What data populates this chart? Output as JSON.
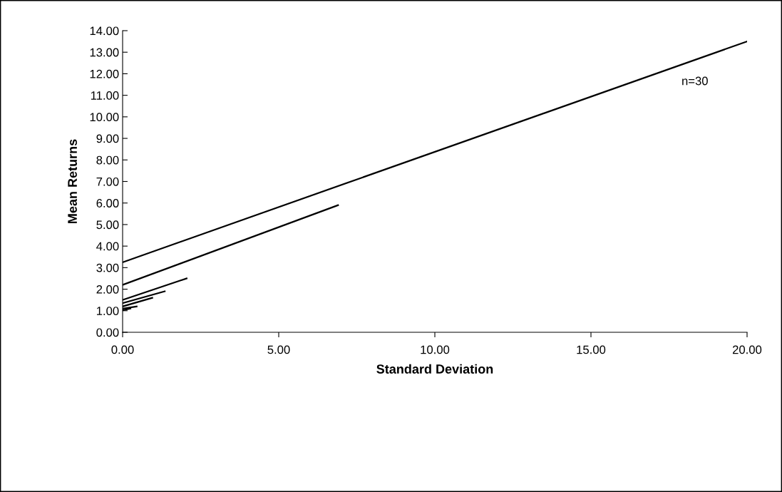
{
  "chart_data": {
    "type": "line",
    "xlabel": "Standard Deviation",
    "ylabel": "Mean Returns",
    "annotations": [
      "n=30"
    ],
    "series": [
      {
        "color": "#000000",
        "x": [
          0,
          20
        ],
        "values": [
          3.25,
          13.5
        ]
      },
      {
        "color": "#000000",
        "x": [
          0,
          6.9
        ],
        "values": [
          2.2,
          5.9
        ]
      },
      {
        "color": "#000000",
        "x": [
          0,
          2.05
        ],
        "values": [
          1.5,
          2.5
        ]
      },
      {
        "color": "#000000",
        "x": [
          0,
          1.35
        ],
        "values": [
          1.35,
          1.9
        ]
      },
      {
        "color": "#000000",
        "x": [
          0,
          0.95
        ],
        "values": [
          1.2,
          1.6
        ]
      },
      {
        "color": "#000000",
        "x": [
          0,
          0.45
        ],
        "values": [
          1.1,
          1.2
        ]
      },
      {
        "color": "#000000",
        "x": [
          0,
          0.25
        ],
        "values": [
          1.02,
          1.1
        ]
      }
    ],
    "xlim": [
      0,
      20
    ],
    "ylim": [
      0,
      14
    ],
    "xticks": [
      {
        "value": 0,
        "label": "0.00"
      },
      {
        "value": 5,
        "label": "5.00"
      },
      {
        "value": 10,
        "label": "10.00"
      },
      {
        "value": 15,
        "label": "15.00"
      },
      {
        "value": 20,
        "label": "20.00"
      }
    ],
    "yticks": [
      {
        "value": 0,
        "label": "0.00"
      },
      {
        "value": 1,
        "label": "1.00"
      },
      {
        "value": 2,
        "label": "2.00"
      },
      {
        "value": 3,
        "label": "3.00"
      },
      {
        "value": 4,
        "label": "4.00"
      },
      {
        "value": 5,
        "label": "5.00"
      },
      {
        "value": 6,
        "label": "6.00"
      },
      {
        "value": 7,
        "label": "7.00"
      },
      {
        "value": 8,
        "label": "8.00"
      },
      {
        "value": 9,
        "label": "9.00"
      },
      {
        "value": 10,
        "label": "10.00"
      },
      {
        "value": 11,
        "label": "11.00"
      },
      {
        "value": 12,
        "label": "12.00"
      },
      {
        "value": 13,
        "label": "13.00"
      },
      {
        "value": 14,
        "label": "14.00"
      }
    ],
    "grid": false,
    "marker": "none",
    "line_style": "solid"
  }
}
